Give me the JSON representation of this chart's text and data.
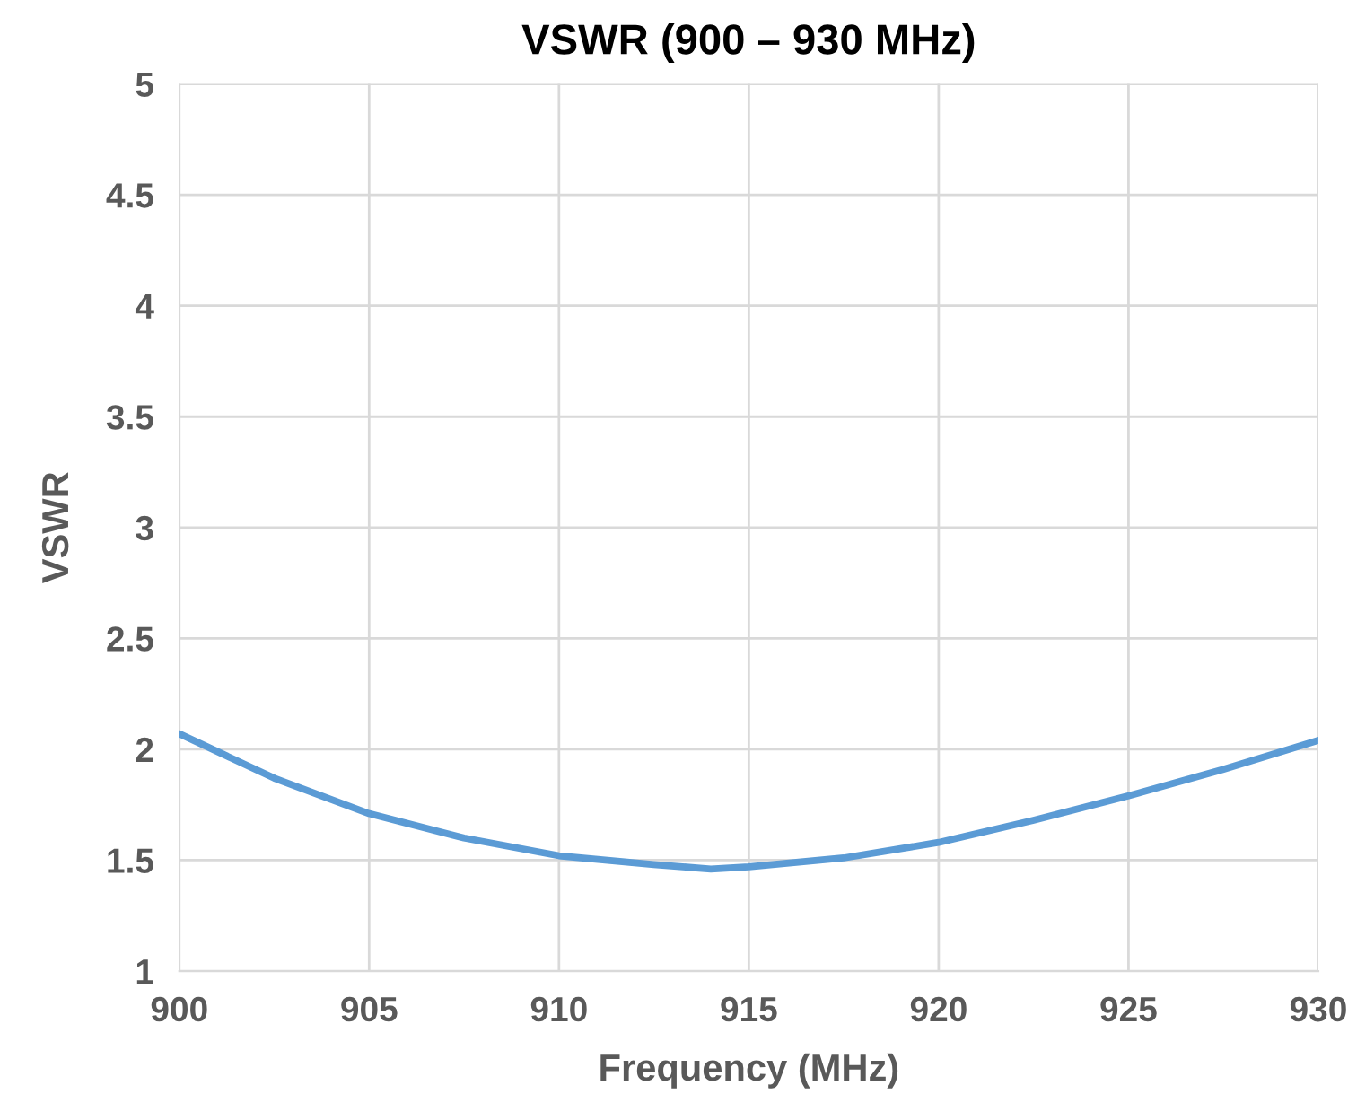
{
  "chart_data": {
    "type": "line",
    "title": "VSWR (900 – 930 MHz)",
    "xlabel": "Frequency (MHz)",
    "ylabel": "VSWR",
    "series": [
      {
        "color": "#5b9bd5",
        "x": [
          900,
          902.5,
          905,
          907.5,
          910,
          912.5,
          914,
          915,
          917.5,
          920,
          922.5,
          925,
          927.5,
          930
        ],
        "values": [
          2.07,
          1.87,
          1.71,
          1.6,
          1.52,
          1.48,
          1.46,
          1.47,
          1.51,
          1.58,
          1.68,
          1.79,
          1.91,
          2.04
        ]
      }
    ],
    "xlim": [
      900,
      930
    ],
    "xticks": [
      900,
      905,
      910,
      915,
      920,
      925,
      930
    ],
    "ylim": [
      1,
      5
    ],
    "yticks": [
      1,
      1.5,
      2,
      2.5,
      3,
      3.5,
      4,
      4.5,
      5
    ],
    "grid": true,
    "marker": "none",
    "line_style": "solid"
  }
}
